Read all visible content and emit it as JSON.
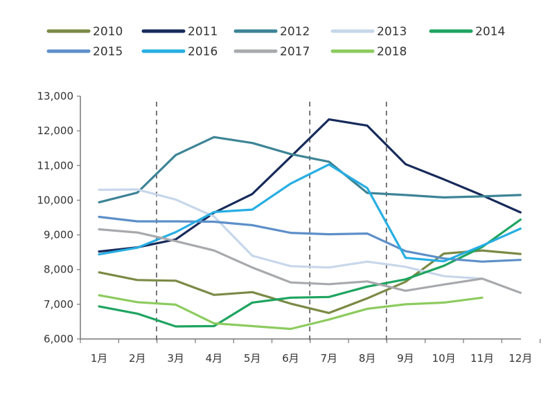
{
  "chart_data": {
    "type": "line",
    "title": "",
    "xlabel": "",
    "ylabel": "",
    "categories": [
      "1月",
      "2月",
      "3月",
      "4月",
      "5月",
      "6月",
      "7月",
      "8月",
      "9月",
      "10月",
      "11月",
      "12月"
    ],
    "ylim": [
      6000,
      13000
    ],
    "yticks": [
      6000,
      7000,
      8000,
      9000,
      10000,
      11000,
      12000,
      13000
    ],
    "ytick_labels": [
      "6,000",
      "7,000",
      "8,000",
      "9,000",
      "10,000",
      "11,000",
      "12,000",
      "13,000"
    ],
    "grid": false,
    "legend_position": "top",
    "reference_lines_after_month": [
      "2月",
      "6月",
      "8月"
    ],
    "series": [
      {
        "name": "2010",
        "color": "#7a8a45",
        "values": [
          7920,
          7700,
          7680,
          7270,
          7350,
          7020,
          6750,
          7170,
          7650,
          8460,
          8550,
          8450
        ]
      },
      {
        "name": "2011",
        "color": "#172a5a",
        "values": [
          8520,
          8640,
          8870,
          9640,
          10180,
          11250,
          12330,
          12150,
          11040,
          10600,
          10140,
          9650
        ]
      },
      {
        "name": "2012",
        "color": "#3d8496",
        "values": [
          9940,
          10220,
          11300,
          11820,
          11650,
          11330,
          11110,
          10210,
          10150,
          10080,
          10110,
          10150
        ]
      },
      {
        "name": "2013",
        "color": "#c7d7ea",
        "values": [
          10300,
          10310,
          10020,
          9530,
          8400,
          8100,
          8060,
          8230,
          8080,
          7810,
          7740,
          null
        ]
      },
      {
        "name": "2014",
        "color": "#1ea460",
        "values": [
          6940,
          6730,
          6360,
          6370,
          7050,
          7190,
          7210,
          7510,
          7720,
          8110,
          8650,
          9440
        ]
      },
      {
        "name": "2015",
        "color": "#5d8fc8",
        "values": [
          9520,
          9390,
          9390,
          9380,
          9280,
          9060,
          9020,
          9040,
          8530,
          8320,
          8230,
          8280
        ]
      },
      {
        "name": "2016",
        "color": "#27aee3",
        "values": [
          8440,
          8630,
          9080,
          9660,
          9730,
          10480,
          11030,
          10350,
          8340,
          8240,
          8690,
          9180
        ]
      },
      {
        "name": "2017",
        "color": "#a7a9ac",
        "values": [
          9160,
          9070,
          8820,
          8550,
          8060,
          7630,
          7580,
          7660,
          7390,
          7570,
          7740,
          7330
        ]
      },
      {
        "name": "2018",
        "color": "#8dcb5f",
        "values": [
          7260,
          7060,
          6990,
          6450,
          6370,
          6290,
          6560,
          6870,
          7000,
          7050,
          7190,
          null
        ]
      }
    ]
  }
}
